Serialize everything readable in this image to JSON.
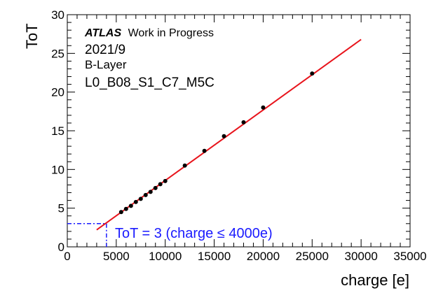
{
  "chart_data": {
    "type": "scatter",
    "xlabel": "charge [e]",
    "ylabel": "ToT",
    "xlim": [
      0,
      35000
    ],
    "ylim": [
      0,
      30
    ],
    "x_ticks": [
      "0",
      "5000",
      "10000",
      "15000",
      "20000",
      "25000",
      "30000",
      "35000"
    ],
    "y_ticks": [
      "0",
      "5",
      "10",
      "15",
      "20",
      "25",
      "30"
    ],
    "x_tick_values": [
      0,
      5000,
      10000,
      15000,
      20000,
      25000,
      30000,
      35000
    ],
    "y_tick_values": [
      0,
      5,
      10,
      15,
      20,
      25,
      30
    ],
    "points": {
      "x": [
        5500,
        6000,
        6500,
        7000,
        7500,
        8000,
        8500,
        9000,
        9500,
        10000,
        12000,
        14000,
        16000,
        18000,
        20000,
        25000
      ],
      "y": [
        4.5,
        4.9,
        5.3,
        5.8,
        6.2,
        6.7,
        7.1,
        7.6,
        8.1,
        8.5,
        10.5,
        12.4,
        14.3,
        16.1,
        18.0,
        22.4
      ]
    },
    "fit_line": {
      "x": [
        3000,
        30000
      ],
      "y": [
        2.2,
        26.8
      ],
      "color": "#e8141c"
    },
    "threshold_marker": {
      "x": 4000,
      "y": 3,
      "color": "#1a1aff"
    },
    "grid": false
  },
  "annotations": {
    "atlas": "ATLAS",
    "status": "Work in Progress",
    "date": "2021/9",
    "layer": "B-Layer",
    "module": "L0_B08_S1_C7_M5C",
    "threshold_label": "ToT = 3 (charge ≤ 4000e)"
  },
  "colors": {
    "points": "#000000",
    "fit": "#e8141c",
    "threshold": "#1a1aff"
  }
}
